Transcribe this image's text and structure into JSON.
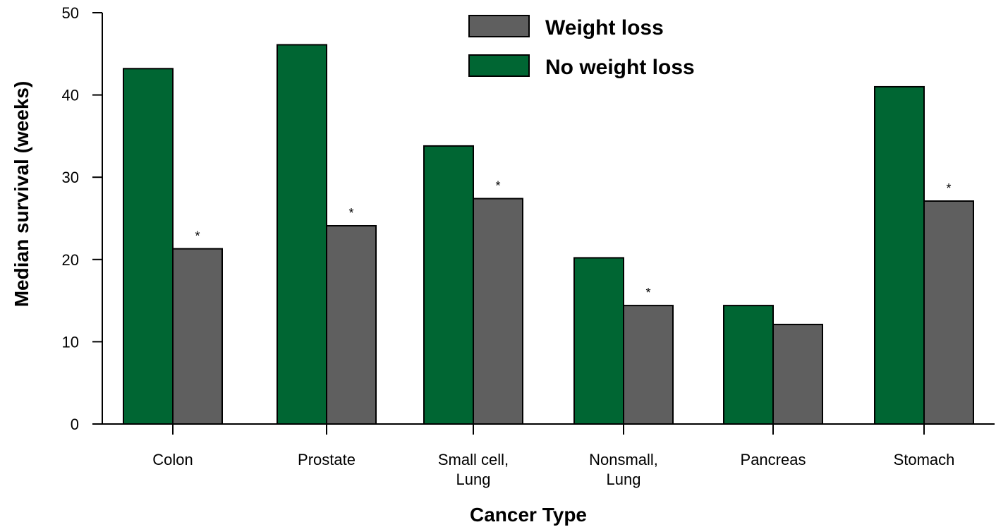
{
  "chart_data": {
    "type": "bar",
    "title": "",
    "xlabel": "Cancer Type",
    "ylabel": "Median survival (weeks)",
    "ylim": [
      0,
      50
    ],
    "yticks": [
      "0",
      "10",
      "20",
      "30",
      "40",
      "50"
    ],
    "ytick_values": [
      0,
      10,
      20,
      30,
      40,
      50
    ],
    "categories": [
      "Colon",
      "Prostate",
      "Small cell, Lung",
      "Nonsmall, Lung",
      "Pancreas",
      "Stomach"
    ],
    "category_lines": [
      [
        "Colon"
      ],
      [
        "Prostate"
      ],
      [
        "Small cell,",
        "Lung"
      ],
      [
        "Nonsmall,",
        "Lung"
      ],
      [
        "Pancreas"
      ],
      [
        "Stomach"
      ]
    ],
    "series": [
      {
        "name": "No weight loss",
        "color": "#006633",
        "values": [
          43.2,
          46.1,
          33.8,
          20.2,
          14.4,
          41.0
        ]
      },
      {
        "name": "Weight loss",
        "color": "#5f5f5f",
        "values": [
          21.3,
          24.1,
          27.4,
          14.4,
          12.1,
          27.1
        ]
      }
    ],
    "significance_marker": "*",
    "significant": [
      true,
      true,
      true,
      true,
      false,
      true
    ],
    "legend_order": [
      "Weight loss",
      "No weight loss"
    ],
    "legend_position": "top-center",
    "grid": false
  }
}
